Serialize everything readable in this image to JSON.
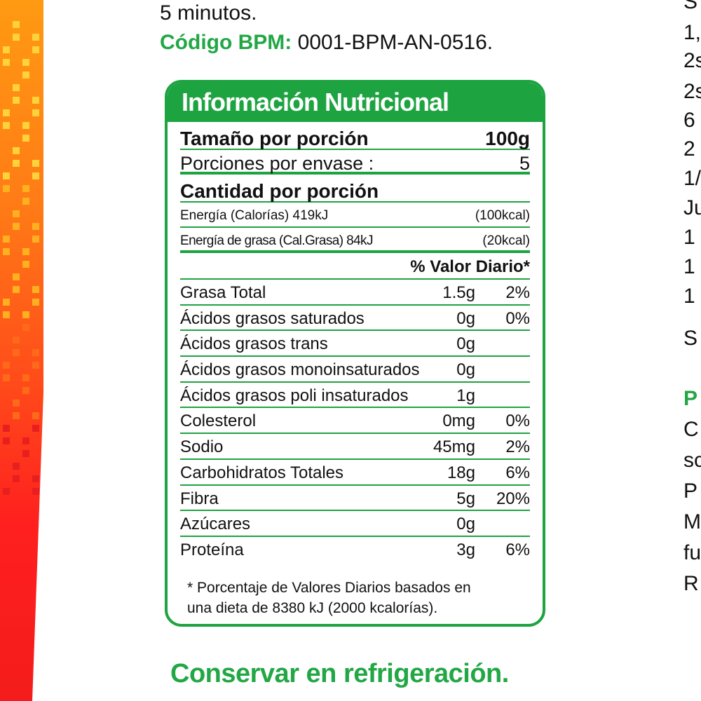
{
  "header": {
    "line1": "5 minutos.",
    "bpm_label": "Código BPM:",
    "bpm_code": " 0001-BPM-AN-0516."
  },
  "panel": {
    "title": "Información Nutricional",
    "serving_label": "Tamaño por porción",
    "serving_value": "100g",
    "portions_label": "Porciones por envase :",
    "portions_value": "5",
    "amount_label": "Cantidad por porción",
    "energy_label": "Energía (Calorías) 419kJ",
    "energy_value": "(100kcal)",
    "fat_energy_label": "Energía de grasa (Cal.Grasa) 84kJ",
    "fat_energy_value": "(20kcal)",
    "dv_header": "% Valor Diario*",
    "nutrients": [
      {
        "name": "Grasa Total",
        "amount": "1.5g",
        "dv": "2%"
      },
      {
        "name": "Ácidos grasos saturados",
        "amount": "0g",
        "dv": "0%"
      },
      {
        "name": "Ácidos grasos trans",
        "amount": "0g",
        "dv": ""
      },
      {
        "name": "Ácidos grasos monoinsaturados",
        "amount": "0g",
        "dv": ""
      },
      {
        "name": "Ácidos grasos poli insaturados",
        "amount": "1g",
        "dv": ""
      },
      {
        "name": "Colesterol",
        "amount": "0mg",
        "dv": "0%"
      },
      {
        "name": "Sodio",
        "amount": "45mg",
        "dv": "2%"
      },
      {
        "name": "Carbohidratos Totales",
        "amount": "18g",
        "dv": "6%"
      },
      {
        "name": "Fibra",
        "amount": "5g",
        "dv": "20%"
      },
      {
        "name": "Azúcares",
        "amount": "0g",
        "dv": ""
      },
      {
        "name": "Proteína",
        "amount": "3g",
        "dv": "6%"
      }
    ],
    "footnote_1": "* Porcentaje de Valores Diarios basados en",
    "footnote_2": "una dieta de 8380 kJ (2000 kcalorías)."
  },
  "bottom_note": "Conservar en refrigeración.",
  "right_column": {
    "lines": [
      "S",
      "1,",
      "2s",
      "2s",
      "6",
      "2",
      "1/",
      "Ju",
      "1",
      "1",
      "1",
      "S"
    ],
    "heading": "P",
    "lines2": [
      "C",
      "sc",
      "P",
      "M",
      "fu",
      "R"
    ]
  },
  "colors": {
    "green": "#1ea341",
    "strip_top": "#ff9a12",
    "strip_bottom": "#f41c1c"
  }
}
